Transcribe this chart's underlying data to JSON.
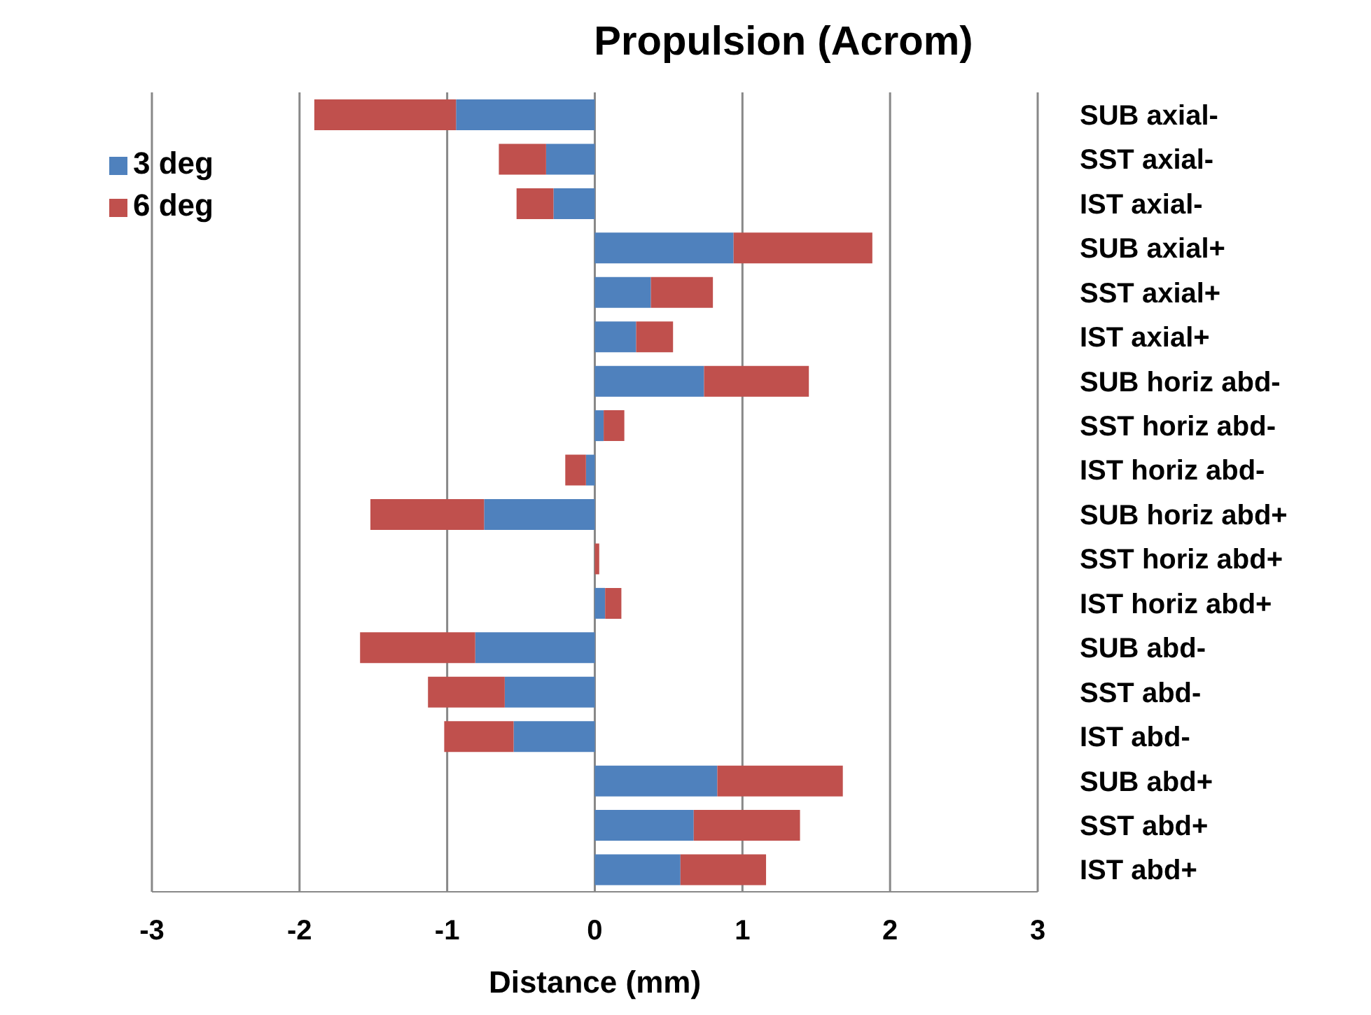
{
  "chart_data": {
    "type": "bar",
    "orientation": "horizontal",
    "stacked": true,
    "title": "Propulsion (Acrom)",
    "xlabel": "Distance (mm)",
    "categories": [
      "SUB axial-",
      "SST axial-",
      "IST axial-",
      "SUB axial+",
      "SST axial+",
      "IST axial+",
      "SUB horiz abd-",
      "SST horiz abd-",
      "IST horiz abd-",
      "SUB horiz abd+",
      "SST horiz abd+",
      "IST horiz abd+",
      "SUB abd-",
      "SST abd-",
      "IST abd-",
      "SUB abd+",
      "SST abd+",
      "IST abd+"
    ],
    "series": [
      {
        "name": "3 deg",
        "color": "#4f81bd",
        "values": [
          -0.94,
          -0.33,
          -0.28,
          0.94,
          0.38,
          0.28,
          0.74,
          0.06,
          -0.06,
          -0.75,
          0,
          0.07,
          -0.81,
          -0.61,
          -0.55,
          0.83,
          0.67,
          0.58
        ]
      },
      {
        "name": "6 deg",
        "color": "#c0504d",
        "values": [
          -0.96,
          -0.32,
          -0.25,
          0.94,
          0.42,
          0.25,
          0.71,
          0.14,
          -0.14,
          -0.77,
          0.03,
          0.11,
          -0.78,
          -0.52,
          -0.47,
          0.85,
          0.72,
          0.58
        ]
      }
    ],
    "xlim": [
      -3,
      3
    ],
    "xticks": [
      -3,
      -2,
      -1,
      0,
      1,
      2,
      3
    ],
    "grid": "x",
    "legend": "top left"
  }
}
